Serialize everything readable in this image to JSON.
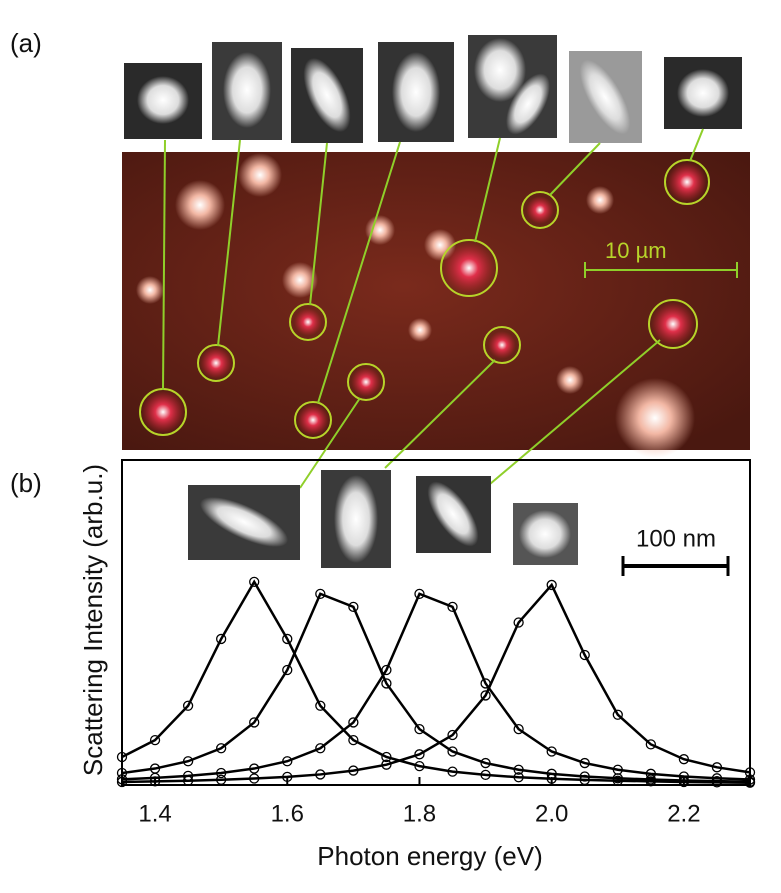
{
  "panel_a": {
    "label": "(a)",
    "scale_label": "10 µm"
  },
  "chart_data": {
    "type": "line",
    "panel_label": "(b)",
    "scale_label": "100 nm",
    "xlabel": "Photon energy (eV)",
    "ylabel": "Scattering Intensity (arb.u.)",
    "x": [
      1.35,
      1.4,
      1.45,
      1.5,
      1.55,
      1.6,
      1.65,
      1.7,
      1.75,
      1.8,
      1.85,
      1.9,
      1.95,
      2.0,
      2.05,
      2.1,
      2.15,
      2.2,
      2.25,
      2.3
    ],
    "series": [
      {
        "color": "#000000",
        "marker": "circle",
        "values": [
          0.138,
          0.221,
          0.39,
          0.719,
          1,
          0.719,
          0.39,
          0.221,
          0.138,
          0.093,
          0.066,
          0.05,
          0.038,
          0.031,
          0.025,
          0.021,
          0.018,
          0.015,
          0.013,
          0.011
        ]
      },
      {
        "color": "#000000",
        "marker": "circle",
        "values": [
          0.059,
          0.081,
          0.117,
          0.181,
          0.308,
          0.566,
          0.941,
          0.877,
          0.5,
          0.275,
          0.165,
          0.108,
          0.075,
          0.055,
          0.042,
          0.033,
          0.027,
          0.022,
          0.019,
          0.016
        ]
      },
      {
        "color": "#000000",
        "marker": "circle",
        "values": [
          0.028,
          0.035,
          0.045,
          0.059,
          0.081,
          0.117,
          0.181,
          0.308,
          0.566,
          0.941,
          0.877,
          0.5,
          0.275,
          0.165,
          0.108,
          0.075,
          0.055,
          0.042,
          0.033,
          0.027
        ]
      },
      {
        "color": "#000000",
        "marker": "circle",
        "values": [
          0.015,
          0.018,
          0.021,
          0.026,
          0.032,
          0.04,
          0.052,
          0.071,
          0.1,
          0.151,
          0.246,
          0.441,
          0.8,
          0.985,
          0.64,
          0.346,
          0.2,
          0.127,
          0.087,
          0.062
        ]
      }
    ],
    "xlim": [
      1.35,
      2.3
    ],
    "xticks": [
      1.4,
      1.6,
      1.8,
      {
        "value": 2.0,
        "label": "2.0"
      },
      2.2
    ],
    "ylim": [
      0,
      1.6
    ]
  }
}
